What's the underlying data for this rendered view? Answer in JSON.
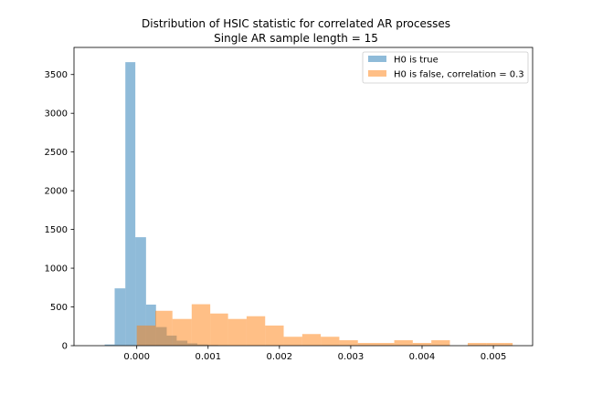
{
  "chart_data": {
    "type": "histogram",
    "title": "Distribution of HSIC statistic for correlated AR processes",
    "subtitle": "Single AR sample length = 15",
    "xlabel": "",
    "ylabel": "",
    "xlim": [
      -0.00088,
      0.00555
    ],
    "ylim": [
      0,
      3850
    ],
    "x_ticks": [
      0.0,
      0.001,
      0.002,
      0.003,
      0.004,
      0.005
    ],
    "x_tick_labels": [
      "0.000",
      "0.001",
      "0.002",
      "0.003",
      "0.004",
      "0.005"
    ],
    "y_ticks": [
      0,
      500,
      1000,
      1500,
      2000,
      2500,
      3000,
      3500
    ],
    "y_tick_labels": [
      "0",
      "500",
      "1000",
      "1500",
      "2000",
      "2500",
      "3000",
      "3500"
    ],
    "grid": false,
    "legend_position": "upper right",
    "alpha": 0.5,
    "series": [
      {
        "name": "H0 is true",
        "color": "#1f77b4",
        "bin_edges": [
          -0.00045,
          -0.00031,
          -0.00016,
          -2e-05,
          0.00013,
          0.00027,
          0.00042,
          0.00056,
          0.00071,
          0.00085,
          0.001,
          0.00114,
          0.00129
        ],
        "counts": [
          15,
          740,
          3660,
          1400,
          530,
          240,
          130,
          65,
          30,
          15,
          8,
          3
        ]
      },
      {
        "name": "H0 is false, correlation = 0.3",
        "color": "#ff7f0e",
        "bin_edges": [
          0.0,
          0.00026,
          0.0005,
          0.00077,
          0.00103,
          0.00128,
          0.00154,
          0.0018,
          0.00206,
          0.00232,
          0.00258,
          0.00284,
          0.0031,
          0.00336,
          0.00361,
          0.00387,
          0.00413,
          0.00439,
          0.00464,
          0.0049,
          0.00516,
          0.00527
        ],
        "counts": [
          260,
          450,
          345,
          535,
          415,
          345,
          380,
          260,
          115,
          150,
          115,
          70,
          35,
          35,
          70,
          35,
          70,
          0,
          35,
          35,
          35
        ]
      }
    ]
  }
}
